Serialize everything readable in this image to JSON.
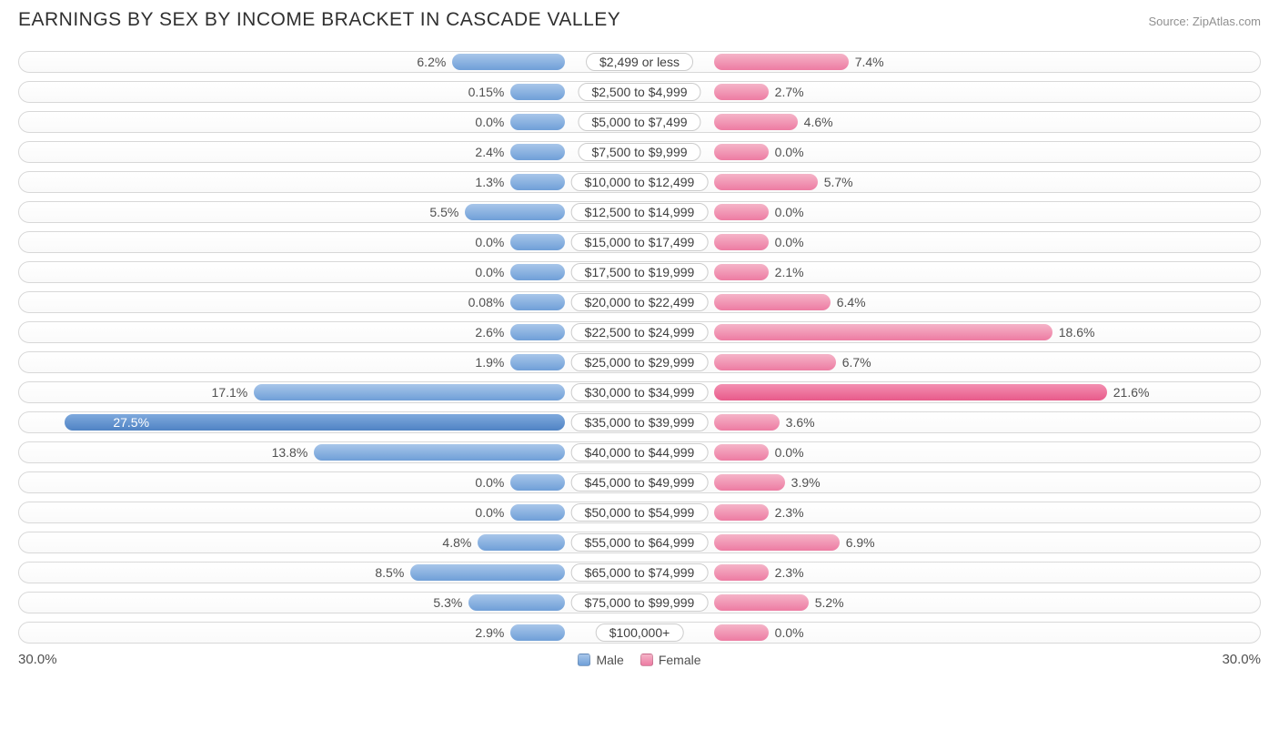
{
  "title": "EARNINGS BY SEX BY INCOME BRACKET IN CASCADE VALLEY",
  "source": "Source: ZipAtlas.com",
  "axis_max_label": "30.0%",
  "axis_max": 30.0,
  "legend": {
    "male": "Male",
    "female": "Female"
  },
  "min_bar_pct": 3.0,
  "colors": {
    "male": "#6f9fd8",
    "male_max": "#4f83c4",
    "female": "#ed7ba2",
    "female_max": "#e85a8a",
    "border": "#d8d8d8",
    "text": "#505050"
  },
  "max_male_index": 12,
  "max_female_index": 11,
  "rows": [
    {
      "bracket": "$2,499 or less",
      "male": 6.2,
      "male_label": "6.2%",
      "female": 7.4,
      "female_label": "7.4%"
    },
    {
      "bracket": "$2,500 to $4,999",
      "male": 0.15,
      "male_label": "0.15%",
      "female": 2.7,
      "female_label": "2.7%"
    },
    {
      "bracket": "$5,000 to $7,499",
      "male": 0.0,
      "male_label": "0.0%",
      "female": 4.6,
      "female_label": "4.6%"
    },
    {
      "bracket": "$7,500 to $9,999",
      "male": 2.4,
      "male_label": "2.4%",
      "female": 0.0,
      "female_label": "0.0%"
    },
    {
      "bracket": "$10,000 to $12,499",
      "male": 1.3,
      "male_label": "1.3%",
      "female": 5.7,
      "female_label": "5.7%"
    },
    {
      "bracket": "$12,500 to $14,999",
      "male": 5.5,
      "male_label": "5.5%",
      "female": 0.0,
      "female_label": "0.0%"
    },
    {
      "bracket": "$15,000 to $17,499",
      "male": 0.0,
      "male_label": "0.0%",
      "female": 0.0,
      "female_label": "0.0%"
    },
    {
      "bracket": "$17,500 to $19,999",
      "male": 0.0,
      "male_label": "0.0%",
      "female": 2.1,
      "female_label": "2.1%"
    },
    {
      "bracket": "$20,000 to $22,499",
      "male": 0.08,
      "male_label": "0.08%",
      "female": 6.4,
      "female_label": "6.4%"
    },
    {
      "bracket": "$22,500 to $24,999",
      "male": 2.6,
      "male_label": "2.6%",
      "female": 18.6,
      "female_label": "18.6%"
    },
    {
      "bracket": "$25,000 to $29,999",
      "male": 1.9,
      "male_label": "1.9%",
      "female": 6.7,
      "female_label": "6.7%"
    },
    {
      "bracket": "$30,000 to $34,999",
      "male": 17.1,
      "male_label": "17.1%",
      "female": 21.6,
      "female_label": "21.6%"
    },
    {
      "bracket": "$35,000 to $39,999",
      "male": 27.5,
      "male_label": "27.5%",
      "female": 3.6,
      "female_label": "3.6%"
    },
    {
      "bracket": "$40,000 to $44,999",
      "male": 13.8,
      "male_label": "13.8%",
      "female": 0.0,
      "female_label": "0.0%"
    },
    {
      "bracket": "$45,000 to $49,999",
      "male": 0.0,
      "male_label": "0.0%",
      "female": 3.9,
      "female_label": "3.9%"
    },
    {
      "bracket": "$50,000 to $54,999",
      "male": 0.0,
      "male_label": "0.0%",
      "female": 2.3,
      "female_label": "2.3%"
    },
    {
      "bracket": "$55,000 to $64,999",
      "male": 4.8,
      "male_label": "4.8%",
      "female": 6.9,
      "female_label": "6.9%"
    },
    {
      "bracket": "$65,000 to $74,999",
      "male": 8.5,
      "male_label": "8.5%",
      "female": 2.3,
      "female_label": "2.3%"
    },
    {
      "bracket": "$75,000 to $99,999",
      "male": 5.3,
      "male_label": "5.3%",
      "female": 5.2,
      "female_label": "5.2%"
    },
    {
      "bracket": "$100,000+",
      "male": 2.9,
      "male_label": "2.9%",
      "female": 0.0,
      "female_label": "0.0%"
    }
  ]
}
